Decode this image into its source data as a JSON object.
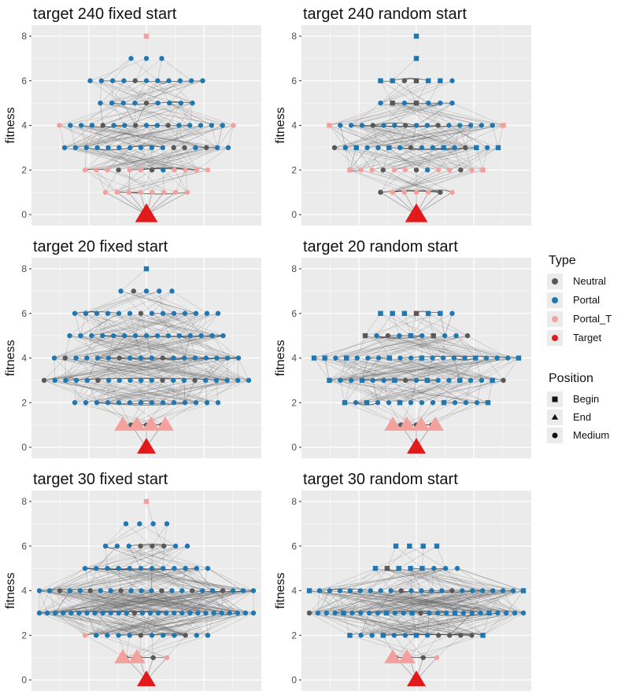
{
  "chart_data": {
    "type": "network-scatter",
    "y_axis_label": "fitness",
    "y_ticks": [
      0,
      2,
      4,
      6,
      8
    ],
    "ylim": [
      0,
      8
    ],
    "type_colors": {
      "Neutral": "#595959",
      "Portal": "#1f78b4",
      "Portal_T": "#f4a09c",
      "Target": "#e31a1c"
    },
    "panels": [
      {
        "title": "target 240 fixed start",
        "levels": [
          {
            "y": 8,
            "n": 1,
            "begin": [
              0
            ],
            "types": "T"
          },
          {
            "y": 7,
            "n": 3,
            "types": "PPP"
          },
          {
            "y": 6,
            "n": 11,
            "types": "PPPPNPPPPPP"
          },
          {
            "y": 5,
            "n": 9,
            "types": "PPPPNPPPP"
          },
          {
            "y": 4,
            "n": 17,
            "types": "TPPPNPPNPPNPPPPPT"
          },
          {
            "y": 3,
            "n": 16,
            "types": "PPPPPPPPPPNNPNPP"
          },
          {
            "y": 2,
            "n": 12,
            "types": "TTTNTTNPTTTT"
          },
          {
            "y": 1,
            "n": 8,
            "types": "TTTTTTTT"
          }
        ],
        "end_y": 0,
        "end_count": 1
      },
      {
        "title": "target 240 random start",
        "levels": [
          {
            "y": 8,
            "n": 1,
            "begin": [
              0
            ],
            "types": "P"
          },
          {
            "y": 7,
            "n": 1,
            "begin": [
              0
            ],
            "types": "P"
          },
          {
            "y": 6,
            "n": 7,
            "begin": [
              0,
              1,
              3,
              4,
              5
            ],
            "types": "PPNNPPP"
          },
          {
            "y": 5,
            "n": 7,
            "begin": [
              1,
              3
            ],
            "types": "PNPNPPP"
          },
          {
            "y": 4,
            "n": 17,
            "begin": [
              0,
              16
            ],
            "types": "TPPPNPPNPPNPPPPPT"
          },
          {
            "y": 3,
            "n": 16,
            "begin": [
              2,
              5,
              10,
              13,
              15
            ],
            "types": "NPPPPPPNPPPPNPPP"
          },
          {
            "y": 2,
            "n": 13,
            "begin": [
              0,
              12
            ],
            "types": "TTTNTTNPTTNTT"
          },
          {
            "y": 1,
            "n": 7,
            "types": "NTTTTNT"
          }
        ],
        "end_y": 0,
        "end_count": 1
      },
      {
        "title": "target 20 fixed start",
        "levels": [
          {
            "y": 8,
            "n": 1,
            "begin": [
              0
            ],
            "types": "P"
          },
          {
            "y": 7,
            "n": 5,
            "types": "PNPPP"
          },
          {
            "y": 6,
            "n": 14,
            "types": "PPPPPPNPPPPPPP"
          },
          {
            "y": 5,
            "n": 15,
            "types": "PPPPPPPPPPPPPPP"
          },
          {
            "y": 4,
            "n": 18,
            "types": "PNPPPPNPPPNPPPPPPP"
          },
          {
            "y": 3,
            "n": 20,
            "types": "NPPPPNPPPPPNPPNPPPPP"
          },
          {
            "y": 2,
            "n": 14,
            "types": "PPPPPPPPPPPPPP"
          },
          {
            "y": 1,
            "n": 3,
            "types": "NNN"
          }
        ],
        "end_y": 1,
        "end_count": 4,
        "end_y2": 0,
        "end_count2": 1
      },
      {
        "title": "target 20 random start",
        "levels": [
          {
            "y": 6,
            "n": 7,
            "begin": [
              0,
              1,
              2,
              3,
              4,
              5
            ],
            "types": "PPPNPPP"
          },
          {
            "y": 5,
            "n": 10,
            "begin": [
              0,
              4,
              6
            ],
            "types": "NPNPPPNPPN"
          },
          {
            "y": 4,
            "n": 20,
            "begin": [
              0,
              1,
              3,
              7,
              10,
              15,
              19
            ],
            "types": "PPPPPPPPPPPPPPPPPPPP"
          },
          {
            "y": 3,
            "n": 17,
            "begin": [
              0,
              3,
              6,
              9,
              12,
              15
            ],
            "types": "PPPPPPPNPPPPPPPPN"
          },
          {
            "y": 2,
            "n": 14,
            "begin": [
              0,
              2,
              5,
              9,
              13
            ],
            "types": "PPPPPPPPPPPPPP"
          },
          {
            "y": 1,
            "n": 3,
            "types": "NNN"
          }
        ],
        "end_y": 1,
        "end_count": 4,
        "end_y2": 0,
        "end_count2": 1
      },
      {
        "title": "target 30 fixed start",
        "levels": [
          {
            "y": 8,
            "n": 1,
            "begin": [
              0
            ],
            "types": "T"
          },
          {
            "y": 7,
            "n": 4,
            "types": "PPPP"
          },
          {
            "y": 6,
            "n": 8,
            "types": "PPPNNNPP"
          },
          {
            "y": 5,
            "n": 12,
            "types": "PPPPPPPPPPPP"
          },
          {
            "y": 4,
            "n": 22,
            "types": "PPNPPNPPNPPPNPPNPPNPPP"
          },
          {
            "y": 3,
            "n": 28,
            "types": "PPPPPPPPPPPPNPPPPPPPPPPPPPPP"
          },
          {
            "y": 2,
            "n": 12,
            "types": "TPPPPNPPPNPP"
          },
          {
            "y": 1,
            "n": 4,
            "types": "NNNT"
          }
        ],
        "end_y": 1,
        "end_count": 2,
        "end_y2": 0,
        "end_count2": 1
      },
      {
        "title": "target 30 random start",
        "levels": [
          {
            "y": 6,
            "n": 4,
            "begin": [
              0,
              1,
              2,
              3
            ],
            "types": "PPPP"
          },
          {
            "y": 5,
            "n": 8,
            "begin": [
              0,
              1,
              2,
              3,
              4
            ],
            "types": "PNPPPPPP"
          },
          {
            "y": 4,
            "n": 22,
            "begin": [
              0,
              21
            ],
            "types": "PPPPPPPPPNPPPPNPPPPPPP"
          },
          {
            "y": 3,
            "n": 26,
            "begin": [
              4,
              9,
              12,
              17,
              21
            ],
            "types": "NPPPPPPPPPPPPNPPPPPPPPPPPP"
          },
          {
            "y": 2,
            "n": 13,
            "begin": [
              0,
              3,
              6,
              12
            ],
            "types": "PPPPPPPPNNNNP"
          },
          {
            "y": 1,
            "n": 4,
            "types": "NNNT"
          }
        ],
        "end_y": 1,
        "end_count": 2,
        "end_y2": 0,
        "end_count2": 1
      }
    ],
    "legend": {
      "type_title": "Type",
      "types": [
        {
          "name": "Neutral",
          "color": "#595959"
        },
        {
          "name": "Portal",
          "color": "#1f78b4"
        },
        {
          "name": "Portal_T",
          "color": "#f4a09c"
        },
        {
          "name": "Target",
          "color": "#e31a1c"
        }
      ],
      "position_title": "Position",
      "positions": [
        {
          "name": "Begin",
          "shape": "square"
        },
        {
          "name": "End",
          "shape": "triangle"
        },
        {
          "name": "Medium",
          "shape": "circle"
        }
      ]
    }
  }
}
